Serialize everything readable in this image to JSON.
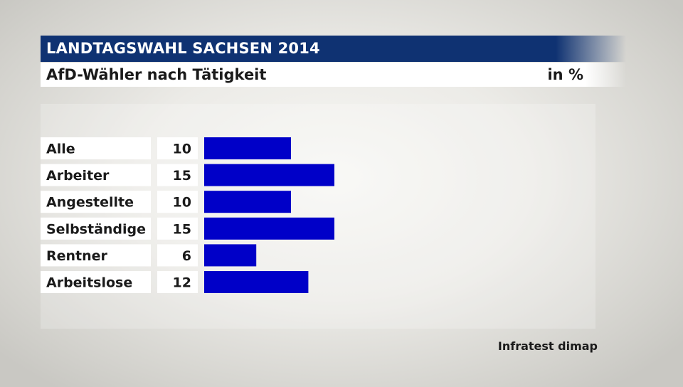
{
  "header": {
    "title": "LANDTAGSWAHL SACHSEN 2014",
    "subtitle": "AfD-Wähler nach Tätigkeit",
    "unit": "in %"
  },
  "source": "Infratest dimap",
  "colors": {
    "title_bg": "#0f3272",
    "bar": "#0000c8",
    "label_bg": "#ffffff"
  },
  "chart_data": {
    "type": "bar",
    "orientation": "horizontal",
    "categories": [
      "Alle",
      "Arbeiter",
      "Angestellte",
      "Selbständige",
      "Rentner",
      "Arbeitslose"
    ],
    "values": [
      10,
      15,
      10,
      15,
      6,
      12
    ],
    "title": "AfD-Wähler nach Tätigkeit",
    "xlabel": "in %",
    "ylabel": "",
    "grid": false
  }
}
